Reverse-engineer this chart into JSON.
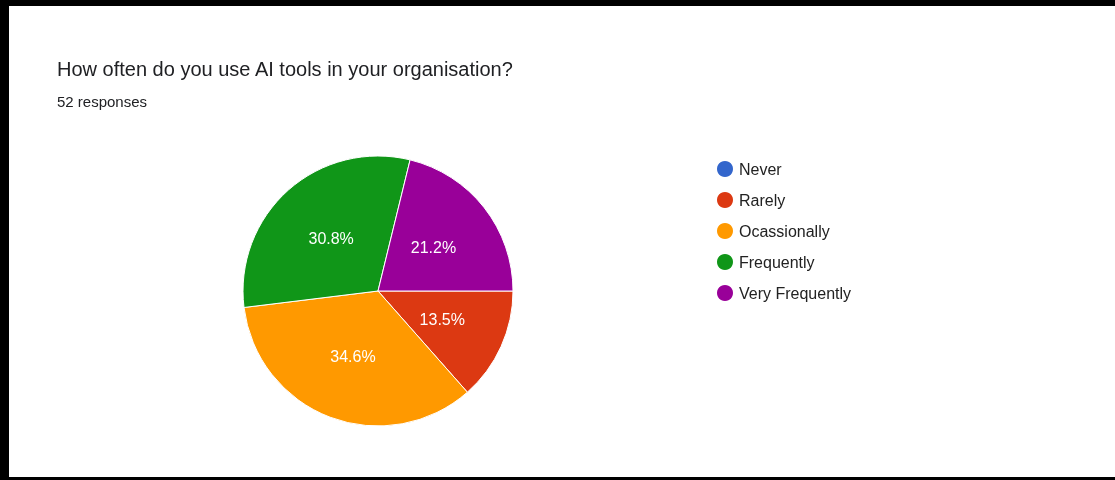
{
  "chart_data": {
    "type": "pie",
    "title": "How often do you use AI tools in your organisation?",
    "subtitle": "52 responses",
    "categories": [
      "Never",
      "Rarely",
      "Ocassionally",
      "Frequently",
      "Very Frequently"
    ],
    "values": [
      0,
      13.5,
      34.6,
      30.8,
      21.2
    ],
    "colors": [
      "#3366cc",
      "#dc3912",
      "#ff9900",
      "#109618",
      "#990099"
    ],
    "value_labels": [
      null,
      "13.5%",
      "34.6%",
      "30.8%",
      "21.2%"
    ],
    "legend": "right"
  }
}
